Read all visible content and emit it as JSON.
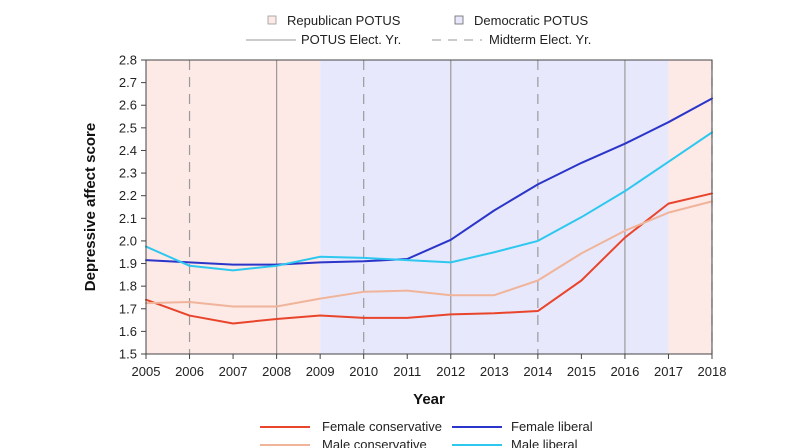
{
  "chart_data": {
    "type": "line",
    "xlabel": "Year",
    "ylabel": "Depressive affect score",
    "xlim": [
      2005,
      2018
    ],
    "ylim": [
      1.5,
      2.8
    ],
    "x_ticks": [
      2005,
      2006,
      2007,
      2008,
      2009,
      2010,
      2011,
      2012,
      2013,
      2014,
      2015,
      2016,
      2017,
      2018
    ],
    "y_ticks": [
      1.5,
      1.6,
      1.7,
      1.8,
      1.9,
      2.0,
      2.1,
      2.2,
      2.3,
      2.4,
      2.5,
      2.6,
      2.7,
      2.8
    ],
    "x": [
      2005,
      2006,
      2007,
      2008,
      2009,
      2010,
      2011,
      2012,
      2013,
      2014,
      2015,
      2016,
      2017,
      2018
    ],
    "series": [
      {
        "name": "Female conservative",
        "color": "#e8452c",
        "values": [
          1.74,
          1.67,
          1.635,
          1.655,
          1.67,
          1.66,
          1.66,
          1.675,
          1.68,
          1.69,
          1.825,
          2.015,
          2.165,
          2.21
        ]
      },
      {
        "name": "Female liberal",
        "color": "#2b35c9",
        "values": [
          1.915,
          1.905,
          1.895,
          1.895,
          1.905,
          1.91,
          1.92,
          2.005,
          2.135,
          2.25,
          2.345,
          2.43,
          2.525,
          2.63
        ]
      },
      {
        "name": "Male conservative",
        "color": "#f0b49a",
        "values": [
          1.725,
          1.73,
          1.71,
          1.71,
          1.745,
          1.775,
          1.78,
          1.76,
          1.76,
          1.825,
          1.945,
          2.045,
          2.125,
          2.175
        ]
      },
      {
        "name": "Male liberal",
        "color": "#2ec8ef",
        "values": [
          1.975,
          1.89,
          1.87,
          1.89,
          1.93,
          1.925,
          1.915,
          1.905,
          1.95,
          2.0,
          2.105,
          2.22,
          2.35,
          2.48
        ]
      }
    ],
    "shaded_regions": [
      {
        "from": 2005,
        "to": 2009,
        "party": "republican"
      },
      {
        "from": 2009,
        "to": 2017,
        "party": "democratic"
      },
      {
        "from": 2017,
        "to": 2018,
        "party": "republican"
      }
    ],
    "election_years": [
      2008,
      2012,
      2016
    ],
    "midterm_years": [
      2006,
      2010,
      2014,
      2018
    ],
    "colors": {
      "republican_fill": "#fde9e6",
      "democratic_fill": "#e8e8fc",
      "election_line": "#9a9a9a",
      "midterm_line": "#9a9a9a"
    },
    "top_legend": {
      "republican": "Republican POTUS",
      "democratic": "Democratic POTUS",
      "election": "POTUS Elect. Yr.",
      "midterm": "Midterm Elect. Yr."
    },
    "bottom_legend": [
      "Female conservative",
      "Female liberal",
      "Male conservative",
      "Male liberal"
    ]
  }
}
